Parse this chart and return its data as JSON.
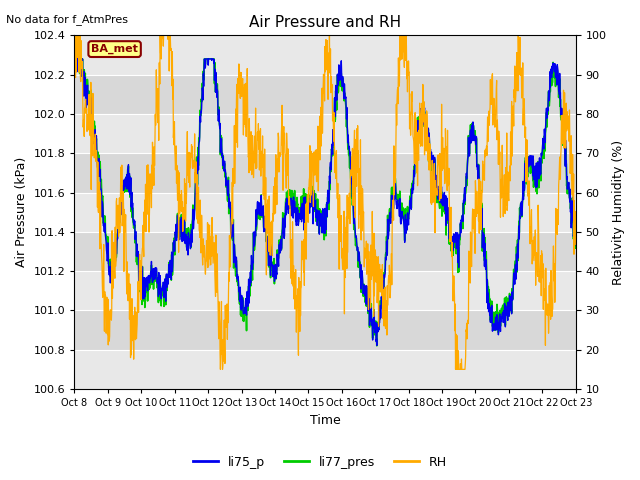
{
  "title": "Air Pressure and RH",
  "no_data_text": "No data for f_AtmPres",
  "station_label": "BA_met",
  "ylabel_left": "Air Pressure (kPa)",
  "ylabel_right": "Relativity Humidity (%)",
  "xlabel": "Time",
  "ylim_left": [
    100.6,
    102.4
  ],
  "ylim_right": [
    10,
    100
  ],
  "yticks_left": [
    100.6,
    100.8,
    101.0,
    101.2,
    101.4,
    101.6,
    101.8,
    102.0,
    102.2,
    102.4
  ],
  "yticks_right": [
    10,
    20,
    30,
    40,
    50,
    60,
    70,
    80,
    90,
    100
  ],
  "xtick_labels": [
    "Oct 8",
    "Oct 9",
    "Oct 10",
    "Oct 11",
    "Oct 12",
    "Oct 13",
    "Oct 14",
    "Oct 15",
    "Oct 16",
    "Oct 17",
    "Oct 18",
    "Oct 19",
    "Oct 20",
    "Oct 21",
    "Oct 22",
    "Oct 23"
  ],
  "color_li75": "#0000ee",
  "color_li77": "#00cc00",
  "color_rh": "#ffaa00",
  "plot_bg": "#e8e8e8",
  "band_light": "#e8e8e8",
  "band_dark": "#d8d8d8",
  "legend_entries": [
    "li75_p",
    "li77_pres",
    "RH"
  ],
  "n_days": 15,
  "n_per_day": 96,
  "seed": 7
}
